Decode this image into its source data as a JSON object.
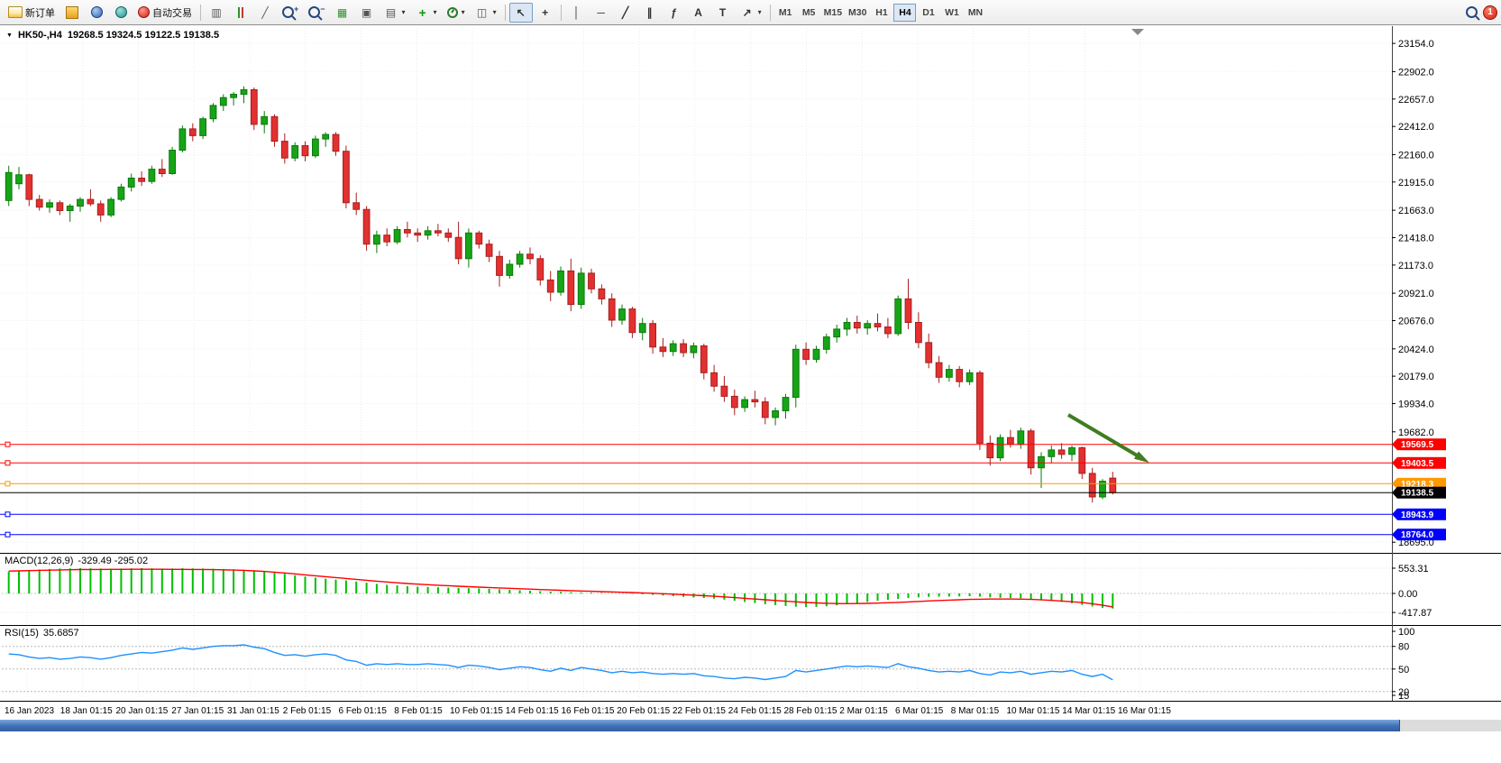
{
  "toolbar": {
    "new_order_label": "新订单",
    "auto_trading_label": "自动交易",
    "timeframes": [
      "M1",
      "M5",
      "M15",
      "M30",
      "H1",
      "H4",
      "D1",
      "W1",
      "MN"
    ],
    "active_timeframe": "H4",
    "notification_count": "1",
    "icons": {
      "dropdown": "▼",
      "caret": "▾",
      "bars_chart": "▥",
      "line_chart": "╱",
      "zoom_in": "+",
      "zoom_out": "−",
      "grid": "▦",
      "tile": "▣",
      "list": "▤",
      "window": "◫",
      "plus": "+",
      "cursor": "↖",
      "crosshair": "+",
      "vline": "│",
      "hline": "─",
      "trendline": "╱",
      "channel": "∥",
      "fibonacci": "ƒ",
      "text": "A",
      "label": "T",
      "arrow": "↗"
    }
  },
  "chart": {
    "symbol_label": "HK50-,H4",
    "ohlc_label": "19268.5 19324.5 19122.5 19138.5",
    "dropdown_icon": "▼"
  },
  "panels": {
    "macd_label": "MACD(12,26,9)",
    "macd_values": "-329.49 -295.02",
    "rsi_label": "RSI(15)",
    "rsi_value": "35.6857"
  },
  "chart_data": {
    "type": "candlestick",
    "symbol": "HK50-",
    "timeframe": "H4",
    "current_ohlc": {
      "open": 19268.5,
      "high": 19324.5,
      "low": 19122.5,
      "close": 19138.5
    },
    "price_axis": [
      23154.0,
      22902.0,
      22657.0,
      22412.0,
      22160.0,
      21915.0,
      21663.0,
      21418.0,
      21173.0,
      20921.0,
      20676.0,
      20424.0,
      20179.0,
      19934.0,
      19682.0,
      18695.0
    ],
    "hlines": [
      {
        "price": 19569.5,
        "color": "#ff0000",
        "current": false
      },
      {
        "price": 19403.5,
        "color": "#ff0000",
        "current": false
      },
      {
        "price": 19218.3,
        "color": "#ff9900",
        "current": false
      },
      {
        "price": 19138.5,
        "color": "#000000",
        "current": true
      },
      {
        "price": 18943.9,
        "color": "#0000ff",
        "current": false
      },
      {
        "price": 18764.0,
        "color": "#0000ff",
        "current": false
      }
    ],
    "candles": [
      [
        21750,
        22060,
        21700,
        22000
      ],
      [
        21900,
        22050,
        21850,
        21980
      ],
      [
        21980,
        21990,
        21700,
        21760
      ],
      [
        21760,
        21800,
        21660,
        21690
      ],
      [
        21690,
        21760,
        21640,
        21730
      ],
      [
        21730,
        21750,
        21620,
        21660
      ],
      [
        21660,
        21720,
        21560,
        21700
      ],
      [
        21700,
        21780,
        21650,
        21760
      ],
      [
        21760,
        21850,
        21700,
        21720
      ],
      [
        21720,
        21750,
        21560,
        21620
      ],
      [
        21620,
        21780,
        21600,
        21760
      ],
      [
        21760,
        21900,
        21740,
        21870
      ],
      [
        21870,
        21990,
        21830,
        21950
      ],
      [
        21950,
        22010,
        21880,
        21920
      ],
      [
        21920,
        22060,
        21900,
        22030
      ],
      [
        22030,
        22120,
        21960,
        21990
      ],
      [
        21990,
        22230,
        21980,
        22200
      ],
      [
        22200,
        22420,
        22180,
        22390
      ],
      [
        22390,
        22440,
        22280,
        22330
      ],
      [
        22330,
        22500,
        22300,
        22480
      ],
      [
        22480,
        22620,
        22450,
        22600
      ],
      [
        22600,
        22700,
        22550,
        22670
      ],
      [
        22670,
        22720,
        22600,
        22700
      ],
      [
        22700,
        22770,
        22620,
        22740
      ],
      [
        22740,
        22760,
        22380,
        22430
      ],
      [
        22430,
        22550,
        22350,
        22500
      ],
      [
        22500,
        22520,
        22230,
        22280
      ],
      [
        22280,
        22350,
        22080,
        22130
      ],
      [
        22130,
        22270,
        22100,
        22240
      ],
      [
        22240,
        22280,
        22100,
        22150
      ],
      [
        22150,
        22330,
        22130,
        22300
      ],
      [
        22300,
        22360,
        22230,
        22340
      ],
      [
        22340,
        22360,
        22150,
        22190
      ],
      [
        22190,
        22240,
        21680,
        21730
      ],
      [
        21730,
        21820,
        21620,
        21670
      ],
      [
        21670,
        21700,
        21300,
        21360
      ],
      [
        21360,
        21480,
        21280,
        21440
      ],
      [
        21440,
        21500,
        21340,
        21380
      ],
      [
        21380,
        21520,
        21360,
        21490
      ],
      [
        21490,
        21560,
        21420,
        21460
      ],
      [
        21460,
        21500,
        21380,
        21440
      ],
      [
        21440,
        21520,
        21400,
        21480
      ],
      [
        21480,
        21540,
        21430,
        21460
      ],
      [
        21460,
        21500,
        21380,
        21420
      ],
      [
        21420,
        21560,
        21180,
        21230
      ],
      [
        21230,
        21500,
        21150,
        21460
      ],
      [
        21460,
        21480,
        21320,
        21360
      ],
      [
        21360,
        21400,
        21200,
        21250
      ],
      [
        21250,
        21300,
        20980,
        21080
      ],
      [
        21080,
        21220,
        21050,
        21180
      ],
      [
        21180,
        21300,
        21150,
        21270
      ],
      [
        21270,
        21330,
        21180,
        21230
      ],
      [
        21230,
        21260,
        20990,
        21040
      ],
      [
        21040,
        21120,
        20850,
        20930
      ],
      [
        20930,
        21160,
        20900,
        21120
      ],
      [
        21120,
        21230,
        20760,
        20820
      ],
      [
        20820,
        21150,
        20780,
        21100
      ],
      [
        21100,
        21140,
        20920,
        20960
      ],
      [
        20960,
        21000,
        20820,
        20870
      ],
      [
        20870,
        20920,
        20620,
        20680
      ],
      [
        20680,
        20820,
        20640,
        20780
      ],
      [
        20780,
        20800,
        20520,
        20570
      ],
      [
        20570,
        20700,
        20500,
        20650
      ],
      [
        20650,
        20680,
        20380,
        20440
      ],
      [
        20440,
        20520,
        20350,
        20400
      ],
      [
        20400,
        20500,
        20360,
        20470
      ],
      [
        20470,
        20510,
        20350,
        20390
      ],
      [
        20390,
        20480,
        20340,
        20450
      ],
      [
        20450,
        20470,
        20150,
        20210
      ],
      [
        20210,
        20280,
        20040,
        20090
      ],
      [
        20090,
        20180,
        19950,
        20000
      ],
      [
        20000,
        20060,
        19830,
        19900
      ],
      [
        19900,
        20000,
        19860,
        19970
      ],
      [
        19970,
        20050,
        19900,
        19950
      ],
      [
        19950,
        19990,
        19750,
        19810
      ],
      [
        19810,
        19900,
        19740,
        19870
      ],
      [
        19870,
        20020,
        19800,
        19990
      ],
      [
        19990,
        20460,
        19900,
        20420
      ],
      [
        20420,
        20480,
        20280,
        20330
      ],
      [
        20330,
        20450,
        20300,
        20420
      ],
      [
        20420,
        20560,
        20380,
        20530
      ],
      [
        20530,
        20640,
        20480,
        20600
      ],
      [
        20600,
        20700,
        20540,
        20660
      ],
      [
        20660,
        20720,
        20560,
        20610
      ],
      [
        20610,
        20680,
        20550,
        20650
      ],
      [
        20650,
        20740,
        20580,
        20620
      ],
      [
        20620,
        20700,
        20520,
        20560
      ],
      [
        20560,
        20900,
        20540,
        20870
      ],
      [
        20870,
        21050,
        20600,
        20660
      ],
      [
        20660,
        20750,
        20430,
        20480
      ],
      [
        20480,
        20560,
        20250,
        20300
      ],
      [
        20300,
        20360,
        20120,
        20170
      ],
      [
        20170,
        20280,
        20130,
        20240
      ],
      [
        20240,
        20270,
        20080,
        20130
      ],
      [
        20130,
        20240,
        20100,
        20210
      ],
      [
        20210,
        20230,
        19520,
        19580
      ],
      [
        19580,
        19650,
        19380,
        19450
      ],
      [
        19450,
        19660,
        19420,
        19630
      ],
      [
        19630,
        19700,
        19540,
        19570
      ],
      [
        19570,
        19720,
        19530,
        19690
      ],
      [
        19690,
        19710,
        19300,
        19360
      ],
      [
        19360,
        19500,
        19180,
        19460
      ],
      [
        19460,
        19560,
        19400,
        19520
      ],
      [
        19520,
        19580,
        19440,
        19480
      ],
      [
        19480,
        19560,
        19420,
        19540
      ],
      [
        19540,
        19550,
        19260,
        19310
      ],
      [
        19310,
        19360,
        19050,
        19100
      ],
      [
        19100,
        19260,
        19080,
        19240
      ],
      [
        19268.5,
        19324.5,
        19122.5,
        19138.5
      ]
    ],
    "macd": {
      "label": "MACD(12,26,9)",
      "main_value": -329.49,
      "signal_value": -295.02,
      "axis": [
        553.31,
        0,
        -417.87
      ],
      "histogram": [
        480,
        500,
        515,
        525,
        535,
        545,
        550,
        553,
        550,
        545,
        540,
        545,
        550,
        553,
        550,
        545,
        548,
        552,
        550,
        545,
        540,
        535,
        528,
        520,
        505,
        485,
        460,
        430,
        400,
        370,
        345,
        325,
        305,
        285,
        260,
        235,
        210,
        190,
        175,
        160,
        150,
        142,
        135,
        128,
        120,
        115,
        108,
        100,
        90,
        80,
        70,
        60,
        50,
        42,
        35,
        28,
        22,
        18,
        12,
        5,
        0,
        -8,
        -18,
        -30,
        -45,
        -60,
        -75,
        -88,
        -100,
        -115,
        -135,
        -160,
        -185,
        -210,
        -235,
        -255,
        -275,
        -290,
        -300,
        -295,
        -280,
        -260,
        -235,
        -210,
        -185,
        -160,
        -140,
        -120,
        -100,
        -85,
        -75,
        -70,
        -68,
        -65,
        -60,
        -70,
        -85,
        -95,
        -100,
        -105,
        -120,
        -140,
        -160,
        -185,
        -215,
        -250,
        -285,
        -315,
        -329.49
      ],
      "signal": [
        490,
        495,
        500,
        505,
        510,
        515,
        520,
        523,
        525,
        526,
        527,
        528,
        529,
        530,
        530,
        529,
        528,
        527,
        526,
        525,
        522,
        518,
        512,
        505,
        495,
        482,
        466,
        448,
        428,
        408,
        388,
        368,
        348,
        328,
        308,
        288,
        268,
        250,
        233,
        218,
        204,
        192,
        180,
        169,
        158,
        148,
        139,
        130,
        121,
        112,
        103,
        94,
        85,
        77,
        69,
        61,
        54,
        47,
        40,
        33,
        26,
        19,
        11,
        3,
        -6,
        -16,
        -27,
        -38,
        -50,
        -62,
        -76,
        -91,
        -107,
        -123,
        -139,
        -155,
        -170,
        -184,
        -197,
        -208,
        -216,
        -221,
        -223,
        -222,
        -218,
        -212,
        -204,
        -195,
        -185,
        -175,
        -165,
        -155,
        -146,
        -138,
        -131,
        -126,
        -123,
        -122,
        -122,
        -124,
        -130,
        -140,
        -152,
        -166,
        -182,
        -200,
        -225,
        -258,
        -295.02
      ]
    },
    "rsi": {
      "label": "RSI(15)",
      "current": 35.6857,
      "levels": [
        80,
        50,
        20
      ],
      "axis_labels": [
        100,
        80,
        50,
        20,
        15
      ],
      "values": [
        70,
        69,
        66,
        64,
        65,
        63,
        64,
        66,
        65,
        63,
        65,
        68,
        70,
        72,
        71,
        73,
        75,
        78,
        76,
        78,
        80,
        81,
        81,
        82,
        79,
        77,
        72,
        68,
        69,
        67,
        69,
        70,
        68,
        62,
        60,
        55,
        57,
        56,
        57,
        56,
        56,
        57,
        56,
        55,
        52,
        55,
        54,
        52,
        49,
        51,
        53,
        52,
        49,
        47,
        51,
        48,
        52,
        50,
        48,
        45,
        47,
        45,
        46,
        44,
        43,
        44,
        43,
        44,
        41,
        40,
        38,
        37,
        39,
        38,
        36,
        38,
        40,
        48,
        46,
        48,
        50,
        52,
        54,
        53,
        54,
        53,
        52,
        57,
        53,
        51,
        48,
        46,
        47,
        46,
        48,
        44,
        42,
        46,
        45,
        47,
        43,
        45,
        47,
        46,
        48,
        43,
        40,
        43,
        35.69
      ]
    },
    "dates": [
      "16 Jan 2023",
      "18 Jan 01:15",
      "20 Jan 01:15",
      "27 Jan 01:15",
      "31 Jan 01:15",
      "2 Feb 01:15",
      "6 Feb 01:15",
      "8 Feb 01:15",
      "10 Feb 01:15",
      "14 Feb 01:15",
      "16 Feb 01:15",
      "20 Feb 01:15",
      "22 Feb 01:15",
      "24 Feb 01:15",
      "28 Feb 01:15",
      "2 Mar 01:15",
      "6 Mar 01:15",
      "8 Mar 01:15",
      "10 Mar 01:15",
      "14 Mar 01:15",
      "16 Mar 01:15"
    ],
    "colors": {
      "up": "#17a417",
      "up_dark": "#0b7a0b",
      "down": "#e33030",
      "down_dark": "#a81f1f",
      "hist": "#00c000",
      "signal": "#ff0000",
      "rsi": "#1e90ff",
      "arrow": "#3f7d1f"
    },
    "arrow": {
      "from": [
        1185,
        431
      ],
      "to": [
        1268,
        480
      ]
    }
  }
}
